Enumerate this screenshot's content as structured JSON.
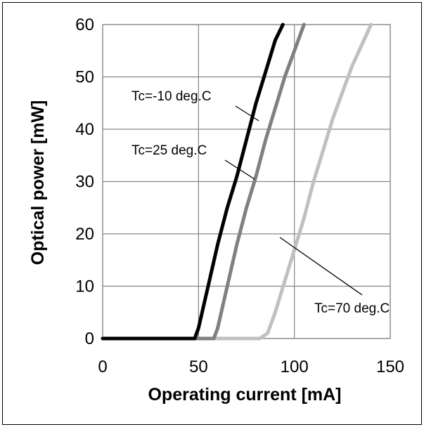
{
  "chart_data": {
    "type": "line",
    "title": "",
    "xlabel": "Operating current [mA]",
    "ylabel": "Optical power [mW]",
    "xlim": [
      0,
      150
    ],
    "ylim": [
      0,
      60
    ],
    "x_ticks": [
      0,
      50,
      100,
      150
    ],
    "y_ticks": [
      0,
      10,
      20,
      30,
      40,
      50,
      60
    ],
    "grid": true,
    "legend": "none",
    "series": [
      {
        "color": "#000000",
        "points": [
          [
            0,
            0
          ],
          [
            48,
            0
          ],
          [
            50,
            2
          ],
          [
            55,
            10
          ],
          [
            60,
            18
          ],
          [
            65,
            25
          ],
          [
            70,
            31
          ],
          [
            75,
            38
          ],
          [
            80,
            45
          ],
          [
            85,
            51
          ],
          [
            90,
            57
          ],
          [
            94,
            60
          ]
        ],
        "annotation": "Tc=-10 deg.C"
      },
      {
        "color": "#808080",
        "points": [
          [
            0,
            0
          ],
          [
            58,
            0
          ],
          [
            60,
            2
          ],
          [
            65,
            10
          ],
          [
            70,
            18
          ],
          [
            75,
            25
          ],
          [
            80,
            31
          ],
          [
            85,
            38
          ],
          [
            90,
            44
          ],
          [
            95,
            50
          ],
          [
            100,
            55
          ],
          [
            105,
            60
          ]
        ],
        "annotation": "Tc=25 deg.C"
      },
      {
        "color": "#c0c0c0",
        "points": [
          [
            0,
            0
          ],
          [
            82,
            0
          ],
          [
            86,
            1
          ],
          [
            90,
            5
          ],
          [
            95,
            11
          ],
          [
            100,
            17
          ],
          [
            105,
            23
          ],
          [
            110,
            30
          ],
          [
            115,
            36
          ],
          [
            120,
            42
          ],
          [
            125,
            47
          ],
          [
            130,
            52
          ],
          [
            135,
            56
          ],
          [
            140,
            60
          ]
        ],
        "annotation": "Tc=70 deg.C"
      }
    ]
  }
}
